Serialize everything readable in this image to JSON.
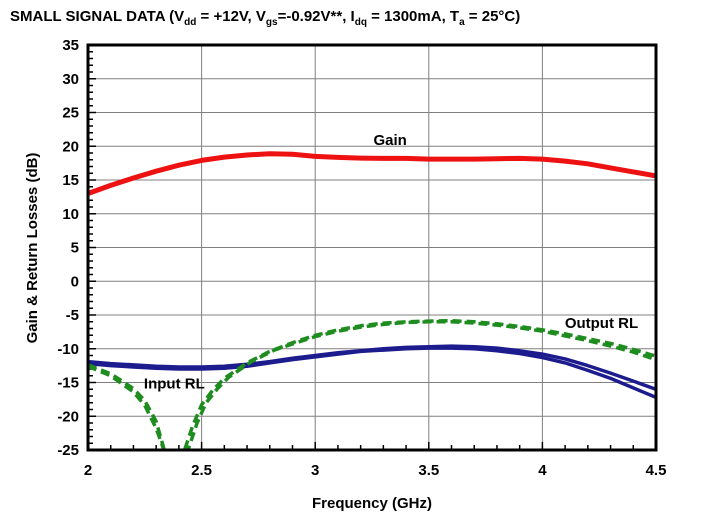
{
  "title": {
    "plain": "SMALL SIGNAL DATA (Vdd = +12V, Vgs=-0.92V**, Idq = 1300mA, Ta = 25°C)",
    "segments": [
      {
        "t": "SMALL SIGNAL DATA (V"
      },
      {
        "t": "dd",
        "sub": true
      },
      {
        "t": " = +12V, V"
      },
      {
        "t": "gs",
        "sub": true
      },
      {
        "t": "=-0.92V**, I"
      },
      {
        "t": "dq",
        "sub": true
      },
      {
        "t": " = 1300mA, T"
      },
      {
        "t": "a",
        "sub": true
      },
      {
        "t": " = 25°C)"
      }
    ]
  },
  "chart_data": {
    "type": "line",
    "title": "",
    "xlabel": "Frequency (GHz)",
    "ylabel": "Gain & Return Losses (dB)",
    "xlim": [
      2,
      4.5
    ],
    "ylim": [
      -25,
      35
    ],
    "x_ticks": [
      "2",
      "2.5",
      "3",
      "3.5",
      "4",
      "4.5"
    ],
    "y_ticks": [
      "35",
      "30",
      "25",
      "20",
      "15",
      "10",
      "5",
      "0",
      "-5",
      "-10",
      "-15",
      "-20",
      "-25"
    ],
    "x_minor_step": 0.1,
    "y_minor_step": 1,
    "grid": true,
    "grid_color": "#808080",
    "border_color": "#000000",
    "legend": "inline-annotations",
    "series": [
      {
        "name": "Gain",
        "color": "#ee1111",
        "width": 5,
        "dash": null,
        "x": [
          2.0,
          2.1,
          2.2,
          2.3,
          2.4,
          2.5,
          2.6,
          2.7,
          2.8,
          2.9,
          3.0,
          3.1,
          3.2,
          3.3,
          3.4,
          3.5,
          3.6,
          3.7,
          3.8,
          3.9,
          4.0,
          4.1,
          4.2,
          4.3,
          4.4,
          4.5
        ],
        "y": [
          13.0,
          14.2,
          15.3,
          16.3,
          17.2,
          17.9,
          18.4,
          18.7,
          18.9,
          18.8,
          18.5,
          18.35,
          18.25,
          18.2,
          18.2,
          18.1,
          18.1,
          18.1,
          18.15,
          18.2,
          18.1,
          17.8,
          17.4,
          16.8,
          16.2,
          15.6
        ]
      },
      {
        "name": "Input RL (trace 1)",
        "color": "#1c1c8f",
        "width": 3.5,
        "dash": null,
        "x": [
          2.0,
          2.1,
          2.2,
          2.3,
          2.4,
          2.5,
          2.6,
          2.7,
          2.8,
          2.9,
          3.0,
          3.1,
          3.2,
          3.3,
          3.4,
          3.5,
          3.6,
          3.7,
          3.8,
          3.9,
          4.0,
          4.1,
          4.2,
          4.3,
          4.4,
          4.5
        ],
        "y": [
          -11.9,
          -12.2,
          -12.4,
          -12.6,
          -12.7,
          -12.7,
          -12.6,
          -12.3,
          -11.9,
          -11.4,
          -11.0,
          -10.6,
          -10.3,
          -10.0,
          -9.8,
          -9.7,
          -9.6,
          -9.7,
          -9.9,
          -10.3,
          -10.8,
          -11.5,
          -12.5,
          -13.6,
          -14.8,
          -16.0
        ]
      },
      {
        "name": "Input RL (trace 2)",
        "color": "#1c1c8f",
        "width": 3.5,
        "dash": null,
        "x": [
          2.0,
          2.1,
          2.2,
          2.3,
          2.4,
          2.5,
          2.6,
          2.7,
          2.8,
          2.9,
          3.0,
          3.1,
          3.2,
          3.3,
          3.4,
          3.5,
          3.6,
          3.7,
          3.8,
          3.9,
          4.0,
          4.1,
          4.2,
          4.3,
          4.4,
          4.5
        ],
        "y": [
          -12.2,
          -12.5,
          -12.7,
          -12.9,
          -13.0,
          -13.0,
          -12.9,
          -12.6,
          -12.1,
          -11.6,
          -11.2,
          -10.8,
          -10.4,
          -10.2,
          -10.0,
          -9.9,
          -9.9,
          -10.0,
          -10.3,
          -10.7,
          -11.3,
          -12.1,
          -13.2,
          -14.4,
          -15.8,
          -17.2
        ]
      },
      {
        "name": "Output RL (trace 1)",
        "color": "#1e8c1e",
        "width": 3.5,
        "dash": "9,5",
        "x": [
          2.0,
          2.1,
          2.2,
          2.25,
          2.3,
          2.34,
          2.38,
          2.42,
          2.46,
          2.5,
          2.55,
          2.6,
          2.7,
          2.8,
          2.9,
          3.0,
          3.1,
          3.2,
          3.3,
          3.4,
          3.5,
          3.6,
          3.7,
          3.8,
          3.9,
          4.0,
          4.1,
          4.2,
          4.3,
          4.4,
          4.5
        ],
        "y": [
          -12.4,
          -13.7,
          -15.9,
          -17.7,
          -20.8,
          -25.5,
          -28.0,
          -25.5,
          -21.5,
          -18.3,
          -16.1,
          -14.4,
          -12.1,
          -10.4,
          -9.1,
          -8.0,
          -7.2,
          -6.6,
          -6.2,
          -6.0,
          -5.9,
          -5.85,
          -6.0,
          -6.3,
          -6.7,
          -7.2,
          -7.8,
          -8.5,
          -9.2,
          -10.1,
          -11.1
        ]
      },
      {
        "name": "Output RL (trace 2)",
        "color": "#1e8c1e",
        "width": 3.5,
        "dash": "9,5",
        "x": [
          2.0,
          2.1,
          2.2,
          2.25,
          2.3,
          2.35,
          2.4,
          2.44,
          2.48,
          2.52,
          2.57,
          2.62,
          2.72,
          2.82,
          2.9,
          3.0,
          3.1,
          3.2,
          3.3,
          3.4,
          3.5,
          3.6,
          3.7,
          3.8,
          3.9,
          4.0,
          4.1,
          4.2,
          4.3,
          4.4,
          4.5
        ],
        "y": [
          -12.6,
          -14.0,
          -16.4,
          -18.4,
          -21.8,
          -26.5,
          -28.5,
          -25.0,
          -21.0,
          -18.0,
          -15.9,
          -14.2,
          -11.9,
          -10.2,
          -9.3,
          -8.2,
          -7.4,
          -6.8,
          -6.4,
          -6.1,
          -6.0,
          -6.0,
          -6.2,
          -6.5,
          -6.9,
          -7.4,
          -8.1,
          -8.8,
          -9.6,
          -10.5,
          -11.6
        ]
      }
    ],
    "annotations": [
      {
        "text": "Gain",
        "x": 3.33,
        "y": 20.2,
        "anchor": "middle"
      },
      {
        "text": "Input RL",
        "x": 2.38,
        "y": -15.9,
        "anchor": "middle"
      },
      {
        "text": "Output RL",
        "x": 4.26,
        "y": -6.9,
        "anchor": "middle"
      }
    ]
  }
}
